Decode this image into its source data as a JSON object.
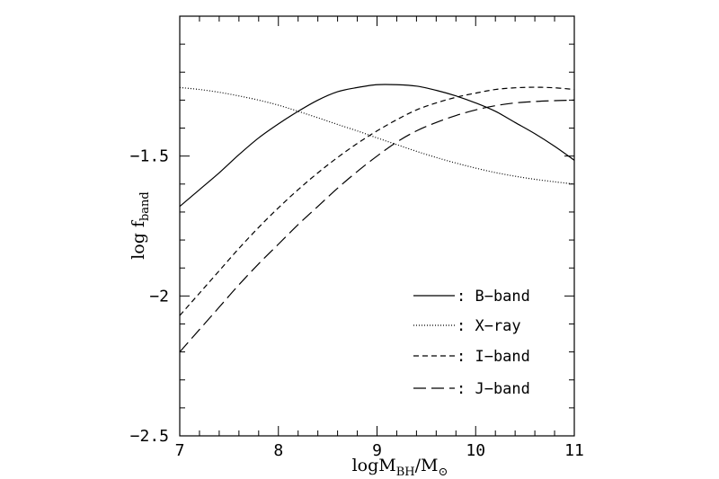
{
  "chart_data": {
    "type": "line",
    "xlabel": "logM_BH/M_⊙",
    "xlabel_parts": {
      "prefix": "logM",
      "sub1": "BH",
      "mid": "/M",
      "sub2": "⊙"
    },
    "ylabel": "log f_band",
    "ylabel_parts": {
      "main": "log f",
      "sub": "band"
    },
    "xlim": [
      7,
      11
    ],
    "ylim": [
      -2.5,
      -1.0
    ],
    "x_ticks": [
      7,
      8,
      9,
      10,
      11
    ],
    "x_tick_labels": [
      "7",
      "8",
      "9",
      "10",
      "11"
    ],
    "y_ticks": [
      -2.5,
      -2.0,
      -1.5
    ],
    "y_tick_labels": [
      "−2.5",
      "−2",
      "−1.5"
    ],
    "x_minor_step": 0.2,
    "y_minor_step": 0.1,
    "grid": false,
    "legend_position": "bottom-right",
    "series": [
      {
        "name": "B-band",
        "legend_label": ": B−band",
        "style": "solid",
        "x": [
          7.0,
          7.2,
          7.4,
          7.6,
          7.8,
          8.0,
          8.2,
          8.4,
          8.6,
          8.8,
          9.0,
          9.2,
          9.4,
          9.6,
          9.8,
          10.0,
          10.2,
          10.4,
          10.6,
          10.8,
          11.0
        ],
        "y": [
          -1.68,
          -1.62,
          -1.56,
          -1.495,
          -1.435,
          -1.385,
          -1.34,
          -1.3,
          -1.27,
          -1.255,
          -1.245,
          -1.245,
          -1.25,
          -1.265,
          -1.285,
          -1.31,
          -1.34,
          -1.38,
          -1.42,
          -1.465,
          -1.515
        ]
      },
      {
        "name": "X-ray",
        "legend_label": ": X−ray",
        "style": "dotted",
        "x": [
          7.0,
          7.2,
          7.4,
          7.6,
          7.8,
          8.0,
          8.2,
          8.4,
          8.6,
          8.8,
          9.0,
          9.2,
          9.4,
          9.6,
          9.8,
          10.0,
          10.2,
          10.4,
          10.6,
          10.8,
          11.0
        ],
        "y": [
          -1.255,
          -1.262,
          -1.272,
          -1.285,
          -1.3,
          -1.318,
          -1.34,
          -1.363,
          -1.387,
          -1.41,
          -1.435,
          -1.459,
          -1.483,
          -1.505,
          -1.525,
          -1.543,
          -1.559,
          -1.572,
          -1.583,
          -1.592,
          -1.6
        ]
      },
      {
        "name": "I-band",
        "legend_label": ": I−band",
        "style": "short-dash",
        "x": [
          7.0,
          7.2,
          7.4,
          7.6,
          7.8,
          8.0,
          8.2,
          8.4,
          8.6,
          8.8,
          9.0,
          9.2,
          9.4,
          9.6,
          9.8,
          10.0,
          10.2,
          10.4,
          10.6,
          10.8,
          11.0
        ],
        "y": [
          -2.07,
          -1.99,
          -1.91,
          -1.83,
          -1.755,
          -1.685,
          -1.62,
          -1.56,
          -1.505,
          -1.455,
          -1.41,
          -1.37,
          -1.335,
          -1.31,
          -1.29,
          -1.275,
          -1.262,
          -1.256,
          -1.254,
          -1.256,
          -1.262
        ]
      },
      {
        "name": "J-band",
        "legend_label": ": J−band",
        "style": "long-dash",
        "x": [
          7.0,
          7.2,
          7.4,
          7.6,
          7.8,
          8.0,
          8.2,
          8.4,
          8.6,
          8.8,
          9.0,
          9.2,
          9.4,
          9.6,
          9.8,
          10.0,
          10.2,
          10.4,
          10.6,
          10.8,
          11.0
        ],
        "y": [
          -2.2,
          -2.12,
          -2.04,
          -1.96,
          -1.885,
          -1.815,
          -1.745,
          -1.68,
          -1.615,
          -1.555,
          -1.5,
          -1.45,
          -1.41,
          -1.38,
          -1.355,
          -1.335,
          -1.32,
          -1.31,
          -1.305,
          -1.302,
          -1.3
        ]
      }
    ]
  }
}
